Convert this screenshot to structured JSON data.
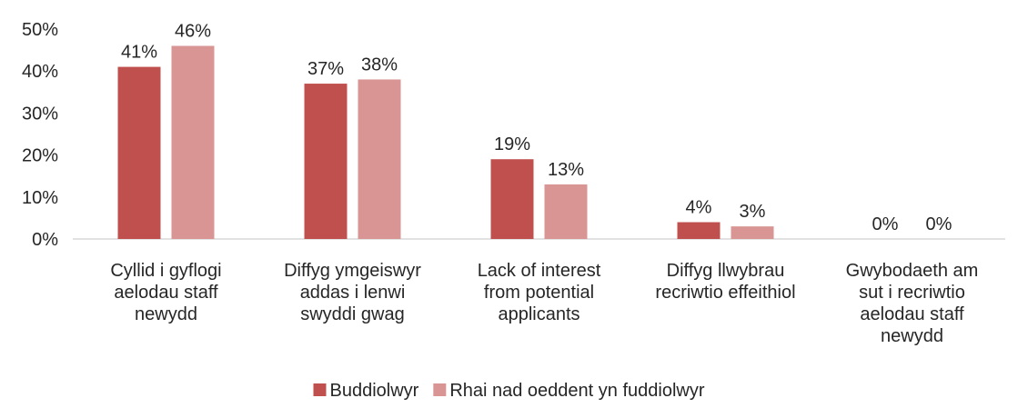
{
  "chart_data": {
    "type": "bar",
    "categories": [
      [
        "Cyllid i gyflogi",
        "aelodau staff",
        "newydd"
      ],
      [
        "Diffyg ymgeiswyr",
        "addas i lenwi",
        "swyddi gwag"
      ],
      [
        "Lack of interest",
        "from potential",
        "applicants"
      ],
      [
        "Diffyg llwybrau",
        "recriwtio effeithiol"
      ],
      [
        "Gwybodaeth am",
        "sut i recriwtio",
        "aelodau staff",
        "newydd"
      ]
    ],
    "series": [
      {
        "name": "Buddiolwyr",
        "color": "#c0504d",
        "values": [
          41,
          37,
          19,
          4,
          0
        ],
        "labels": [
          "41%",
          "37%",
          "19%",
          "4%",
          "0%"
        ]
      },
      {
        "name": "Rhai nad oeddent yn fuddiolwyr",
        "color": "#d99594",
        "values": [
          46,
          38,
          13,
          3,
          0
        ],
        "labels": [
          "46%",
          "38%",
          "13%",
          "3%",
          "0%"
        ]
      }
    ],
    "ylim": [
      0,
      50
    ],
    "yticks": [
      0,
      10,
      20,
      30,
      40,
      50
    ],
    "ytick_labels": [
      "0%",
      "10%",
      "20%",
      "30%",
      "40%",
      "50%"
    ],
    "grid": false,
    "legend": "bottom"
  }
}
